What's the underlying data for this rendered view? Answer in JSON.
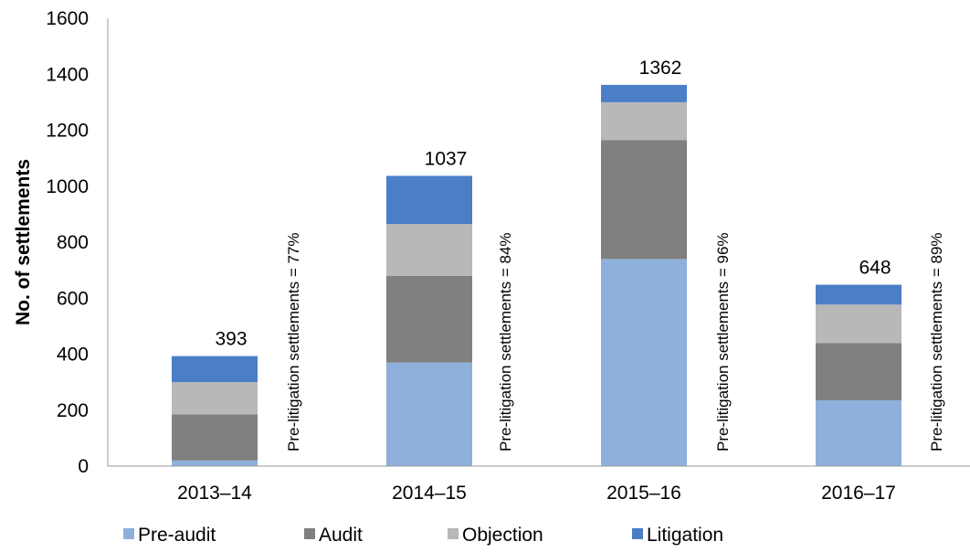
{
  "chart_data": {
    "type": "bar",
    "stacked": true,
    "categories": [
      "2013–14",
      "2014–15",
      "2015–16",
      "2016–17"
    ],
    "series": [
      {
        "name": "Pre-audit",
        "values": [
          20,
          370,
          740,
          235
        ],
        "color": "#8EB0DB"
      },
      {
        "name": "Audit",
        "values": [
          165,
          310,
          425,
          205
        ],
        "color": "#808080"
      },
      {
        "name": "Objection",
        "values": [
          115,
          185,
          135,
          137
        ],
        "color": "#B8B8B8"
      },
      {
        "name": "Litigation",
        "values": [
          93,
          172,
          62,
          71
        ],
        "color": "#4A7EC6"
      }
    ],
    "totals": [
      "393",
      "1037",
      "1362",
      "648"
    ],
    "annotations": [
      "Pre-litigation settlements = 77%",
      "Pre-litigation settlements = 84%",
      "Pre-litigation settlements = 96%",
      "Pre-litigation settlements = 89%"
    ],
    "title": "",
    "xlabel": "",
    "ylabel": "No. of settlements",
    "ylim": [
      0,
      1600
    ],
    "yticks": [
      "0",
      "200",
      "400",
      "600",
      "800",
      "1000",
      "1200",
      "1400",
      "1600"
    ],
    "grid": false,
    "legend_position": "bottom"
  }
}
